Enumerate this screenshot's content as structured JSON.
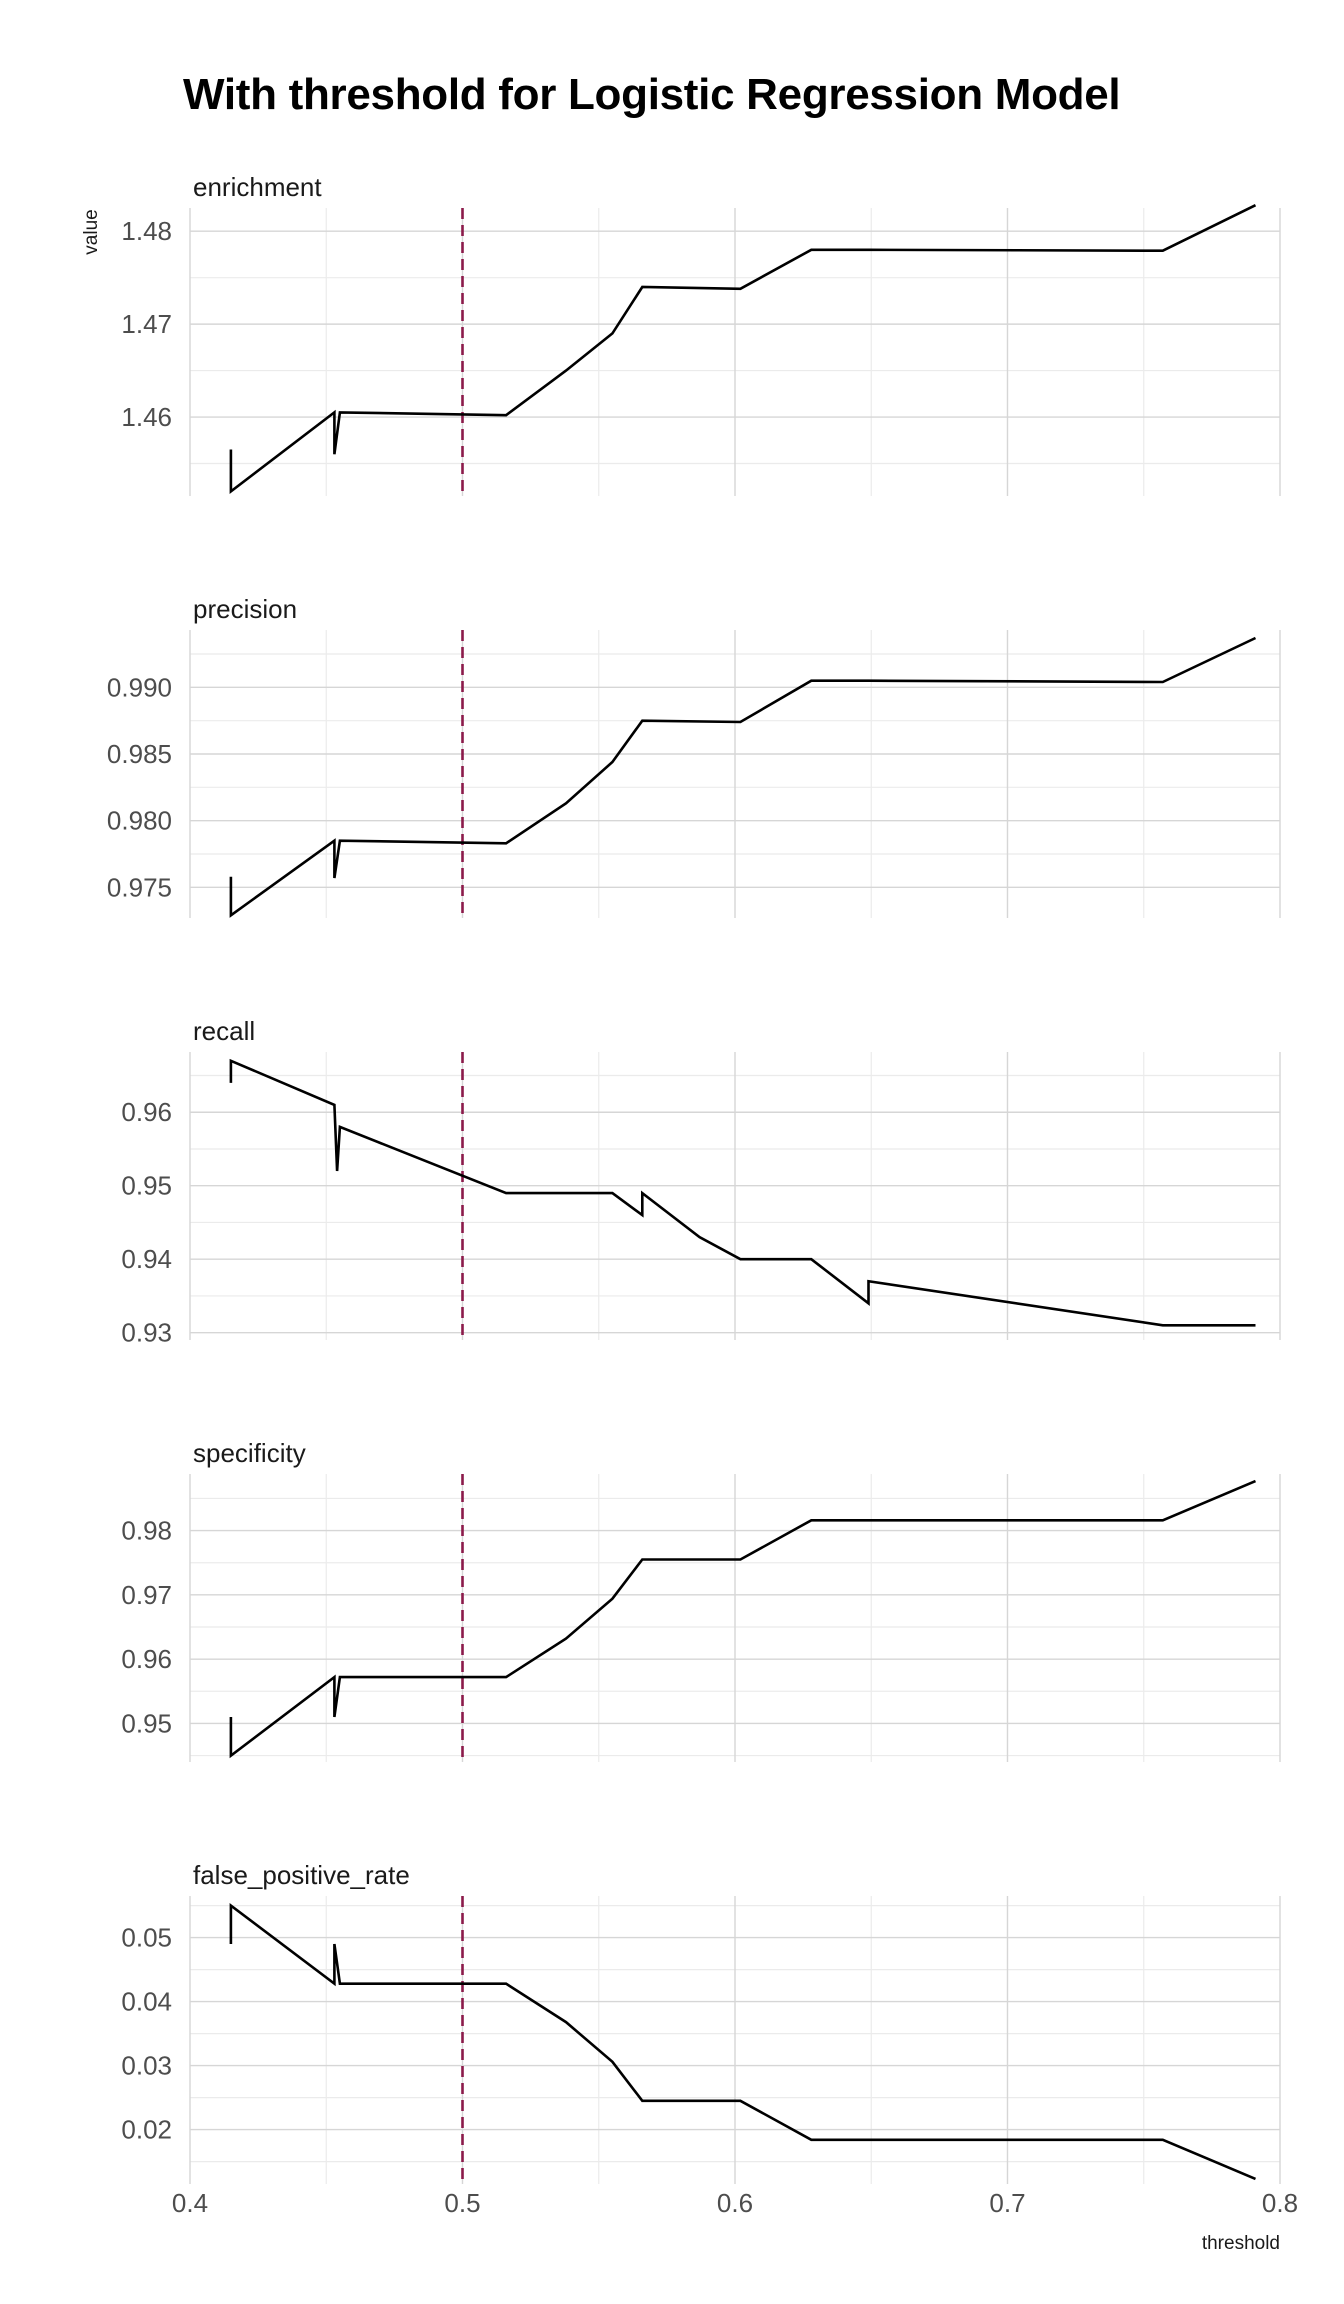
{
  "title": "With threshold for Logistic Regression Model",
  "chart_data": {
    "type": "line",
    "title": "With threshold for Logistic Regression Model",
    "xlabel": "threshold",
    "ylabel": "value",
    "xlim": [
      0.4,
      0.8
    ],
    "x_ticks": [
      "0.4",
      "0.5",
      "0.6",
      "0.7",
      "0.8"
    ],
    "x_tick_values": [
      0.4,
      0.5,
      0.6,
      0.7,
      0.8
    ],
    "grid": true,
    "vline": {
      "x": 0.5,
      "style": "dashed",
      "color": "#8B1A4A"
    },
    "line_color": "#000000",
    "panels": [
      {
        "name": "enrichment",
        "ylim": [
          1.4515,
          1.4825
        ],
        "y_ticks": [
          "1.46",
          "1.47",
          "1.48"
        ],
        "y_tick_values": [
          1.46,
          1.47,
          1.48
        ],
        "x": [
          0.415,
          0.415,
          0.453,
          0.453,
          0.455,
          0.516,
          0.538,
          0.555,
          0.566,
          0.602,
          0.628,
          0.649,
          0.757,
          0.791
        ],
        "y": [
          1.4565,
          1.452,
          1.4605,
          1.456,
          1.4605,
          1.4602,
          1.465,
          1.469,
          1.474,
          1.4738,
          1.478,
          1.478,
          1.4779,
          1.4828
        ]
      },
      {
        "name": "precision",
        "ylim": [
          0.9727,
          0.9943
        ],
        "y_ticks": [
          "0.975",
          "0.980",
          "0.985",
          "0.990"
        ],
        "y_tick_values": [
          0.975,
          0.98,
          0.985,
          0.99
        ],
        "x": [
          0.415,
          0.415,
          0.453,
          0.453,
          0.455,
          0.516,
          0.538,
          0.555,
          0.566,
          0.602,
          0.628,
          0.649,
          0.757,
          0.791
        ],
        "y": [
          0.9758,
          0.9729,
          0.9785,
          0.9757,
          0.9785,
          0.9783,
          0.9813,
          0.9844,
          0.9875,
          0.9874,
          0.9905,
          0.9905,
          0.9904,
          0.9937
        ]
      },
      {
        "name": "recall",
        "ylim": [
          0.929,
          0.9682
        ],
        "y_ticks": [
          "0.93",
          "0.94",
          "0.95",
          "0.96"
        ],
        "y_tick_values": [
          0.93,
          0.94,
          0.95,
          0.96
        ],
        "x": [
          0.415,
          0.415,
          0.453,
          0.454,
          0.455,
          0.516,
          0.555,
          0.566,
          0.566,
          0.587,
          0.602,
          0.628,
          0.649,
          0.649,
          0.757,
          0.791
        ],
        "y": [
          0.964,
          0.967,
          0.961,
          0.952,
          0.958,
          0.949,
          0.949,
          0.946,
          0.949,
          0.943,
          0.94,
          0.94,
          0.934,
          0.937,
          0.931,
          0.931
        ]
      },
      {
        "name": "specificity",
        "ylim": [
          0.944,
          0.9888
        ],
        "y_ticks": [
          "0.95",
          "0.96",
          "0.97",
          "0.98"
        ],
        "y_tick_values": [
          0.95,
          0.96,
          0.97,
          0.98
        ],
        "x": [
          0.415,
          0.415,
          0.453,
          0.453,
          0.455,
          0.516,
          0.538,
          0.555,
          0.566,
          0.602,
          0.628,
          0.649,
          0.757,
          0.791
        ],
        "y": [
          0.951,
          0.945,
          0.9572,
          0.951,
          0.9572,
          0.9572,
          0.9632,
          0.9694,
          0.9755,
          0.9755,
          0.9816,
          0.9816,
          0.9816,
          0.9877
        ]
      },
      {
        "name": "false_positive_rate",
        "ylim": [
          0.0115,
          0.0565
        ],
        "y_ticks": [
          "0.02",
          "0.03",
          "0.04",
          "0.05"
        ],
        "y_tick_values": [
          0.02,
          0.03,
          0.04,
          0.05
        ],
        "x": [
          0.415,
          0.415,
          0.453,
          0.453,
          0.455,
          0.516,
          0.538,
          0.555,
          0.566,
          0.602,
          0.628,
          0.649,
          0.757,
          0.791
        ],
        "y": [
          0.049,
          0.055,
          0.0428,
          0.049,
          0.0428,
          0.0428,
          0.0368,
          0.0306,
          0.0245,
          0.0245,
          0.0184,
          0.0184,
          0.0184,
          0.0123
        ]
      }
    ]
  }
}
